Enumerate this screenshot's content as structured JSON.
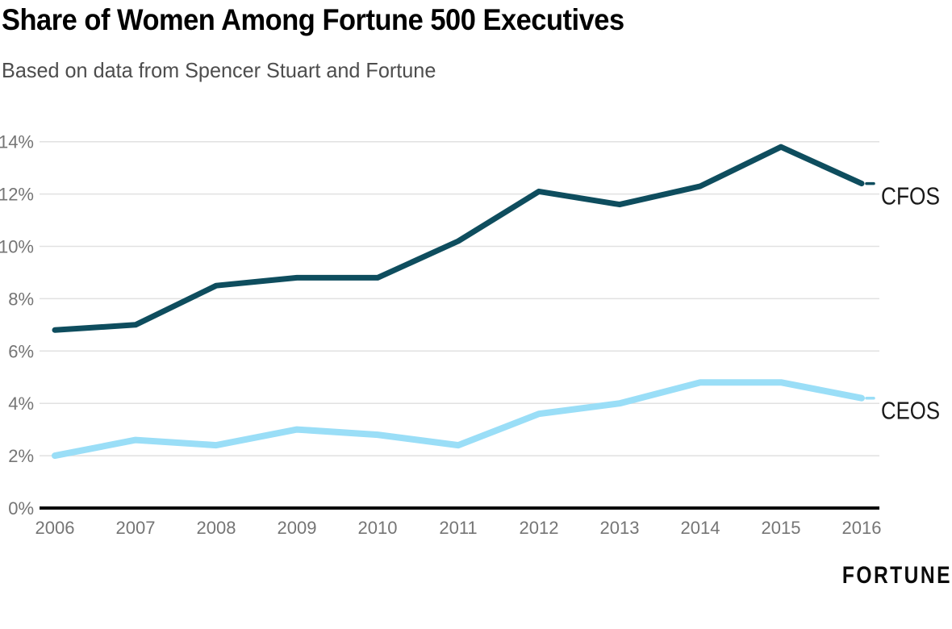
{
  "header": {
    "title": "Share of Women Among Fortune 500 Executives",
    "subtitle": "Based on data from Spencer Stuart and Fortune"
  },
  "branding": {
    "logo_text": "FORTUNE"
  },
  "chart_data": {
    "type": "line",
    "title": "Share of Women Among Fortune 500 Executives",
    "subtitle": "Based on data from Spencer Stuart and Fortune",
    "categories": [
      "2006",
      "2007",
      "2008",
      "2009",
      "2010",
      "2011",
      "2012",
      "2013",
      "2014",
      "2015",
      "2016"
    ],
    "series": [
      {
        "name": "CFOS",
        "color": "#0e4d5e",
        "stroke_width": 7,
        "values": [
          6.8,
          7.0,
          8.5,
          8.8,
          8.8,
          10.2,
          12.1,
          11.6,
          12.3,
          13.8,
          12.4
        ]
      },
      {
        "name": "CEOS",
        "color": "#9adef7",
        "stroke_width": 8,
        "values": [
          2.0,
          2.6,
          2.4,
          3.0,
          2.8,
          2.4,
          3.6,
          4.0,
          4.8,
          4.8,
          4.2
        ]
      }
    ],
    "xlabel": "",
    "ylabel": "",
    "ylim": [
      0,
      14
    ],
    "ytick_step": 2,
    "ytick_labels": [
      "0%",
      "2%",
      "4%",
      "6%",
      "8%",
      "10%",
      "12%",
      "14%"
    ],
    "unit_suffix": "%",
    "grid": true,
    "legend_position": "right-of-line-end",
    "colors": {
      "gridline": "#e1e1e1",
      "axis_line": "#0b0b0b",
      "tick_label": "#757575",
      "series_label": "#1a1a1a",
      "background": "#ffffff"
    }
  }
}
